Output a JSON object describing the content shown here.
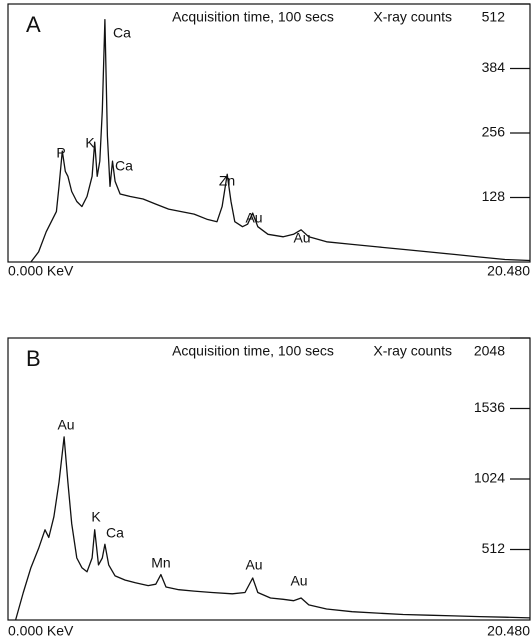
{
  "chart_data": [
    {
      "type": "line",
      "panel_label": "A",
      "subtitle": "Acquisition time, 100 secs",
      "y_label": "X-ray counts",
      "color": "#111111",
      "xlim": [
        0,
        20.48
      ],
      "xticks": [
        {
          "value": 0,
          "label": "0.000 KeV"
        },
        {
          "value": 20.48,
          "label": "20.480"
        }
      ],
      "ylim": [
        0,
        512
      ],
      "yticks": [
        128,
        256,
        384,
        512
      ],
      "annotations": [
        "P",
        "K",
        "Ca",
        "Ca",
        "Zn",
        "Au",
        "Au"
      ],
      "x": [
        0.9,
        1.2,
        1.5,
        1.7,
        1.9,
        2.0,
        2.13,
        2.25,
        2.35,
        2.5,
        2.7,
        2.9,
        3.1,
        3.3,
        3.4,
        3.5,
        3.6,
        3.7,
        3.8,
        3.9,
        4.0,
        4.1,
        4.2,
        4.4,
        4.8,
        5.3,
        5.8,
        6.3,
        6.8,
        7.3,
        7.8,
        8.2,
        8.4,
        8.6,
        8.75,
        8.9,
        9.2,
        9.4,
        9.6,
        9.8,
        10.2,
        10.8,
        11.2,
        11.5,
        11.8,
        12.5,
        13.5,
        14.5,
        15.5,
        16.5,
        17.5,
        18.5,
        19.5,
        20.48
      ],
      "values": [
        0,
        20,
        60,
        80,
        100,
        150,
        220,
        180,
        170,
        140,
        120,
        110,
        130,
        170,
        238,
        170,
        200,
        300,
        481,
        250,
        150,
        200,
        160,
        135,
        130,
        125,
        115,
        105,
        100,
        95,
        85,
        80,
        110,
        174,
        120,
        80,
        70,
        75,
        97,
        70,
        55,
        50,
        55,
        64,
        50,
        40,
        35,
        30,
        25,
        20,
        15,
        10,
        5,
        3
      ]
    },
    {
      "type": "line",
      "panel_label": "B",
      "subtitle": "Acquisition time, 100 secs",
      "y_label": "X-ray counts",
      "color": "#111111",
      "xlim": [
        0,
        20.48
      ],
      "xticks": [
        {
          "value": 0,
          "label": "0.000 KeV"
        },
        {
          "value": 20.48,
          "label": "20.480"
        }
      ],
      "ylim": [
        0,
        2048
      ],
      "yticks": [
        512,
        1024,
        1536,
        2048
      ],
      "annotations": [
        "Au",
        "K",
        "Ca",
        "Mn",
        "Au",
        "Au"
      ],
      "x": [
        0.3,
        0.6,
        0.9,
        1.2,
        1.45,
        1.6,
        1.8,
        2.0,
        2.2,
        2.35,
        2.5,
        2.7,
        2.9,
        3.1,
        3.3,
        3.4,
        3.55,
        3.7,
        3.8,
        3.95,
        4.2,
        4.6,
        5.0,
        5.5,
        5.8,
        6.0,
        6.2,
        6.7,
        7.3,
        8.0,
        8.8,
        9.3,
        9.6,
        9.8,
        10.3,
        10.8,
        11.2,
        11.5,
        11.8,
        12.5,
        13.5,
        14.5,
        15.5,
        16.5,
        17.5,
        18.5,
        19.5,
        20.48
      ],
      "values": [
        0,
        200,
        380,
        520,
        655,
        600,
        750,
        1000,
        1330,
        1000,
        700,
        450,
        380,
        350,
        450,
        655,
        400,
        450,
        550,
        400,
        320,
        290,
        270,
        250,
        260,
        330,
        240,
        220,
        210,
        200,
        190,
        200,
        305,
        200,
        160,
        150,
        140,
        160,
        110,
        80,
        60,
        50,
        40,
        35,
        30,
        25,
        20,
        15
      ]
    }
  ]
}
